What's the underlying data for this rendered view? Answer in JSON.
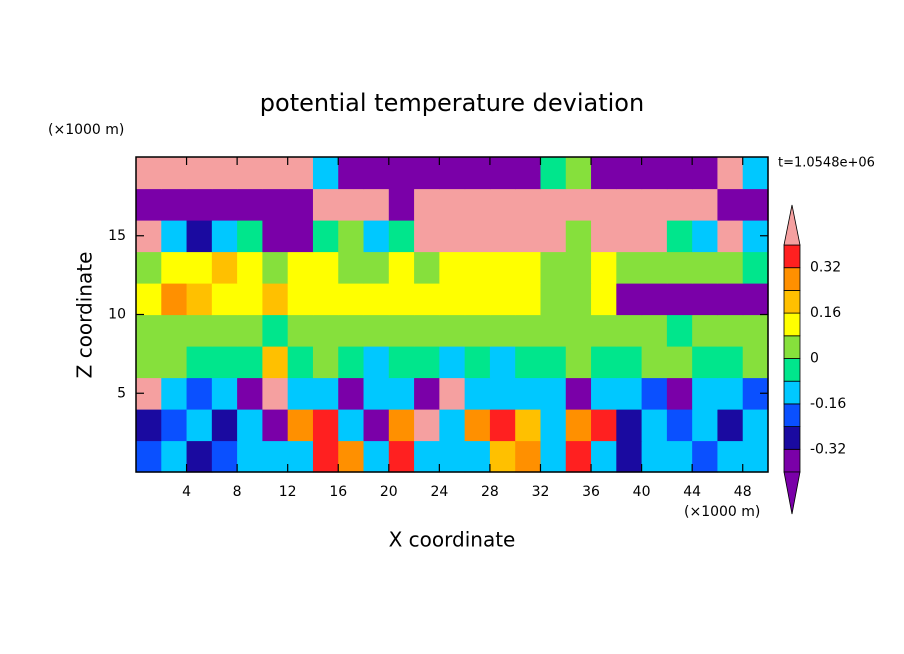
{
  "chart_data": {
    "type": "contour",
    "title": "potential temperature deviation",
    "x_label": "X coordinate",
    "y_label": "Z coordinate",
    "x_units": "(×1000 m)",
    "y_units": "(×1000 m)",
    "time_label": "t=1.0548e+06",
    "xlim": [
      0,
      50
    ],
    "ylim": [
      0,
      20
    ],
    "xticks": [
      4,
      8,
      12,
      16,
      20,
      24,
      28,
      32,
      36,
      40,
      44,
      48
    ],
    "yticks": [
      5,
      10,
      15
    ],
    "levels": [
      -0.4,
      -0.32,
      -0.24,
      -0.16,
      -0.08,
      0,
      0.08,
      0.16,
      0.24,
      0.32,
      0.4
    ],
    "colors": [
      "#7a00a8",
      "#7a00a8",
      "#1a0aa0",
      "#0a50ff",
      "#00c8ff",
      "#00e68c",
      "#86e03c",
      "#ffff00",
      "#ffc000",
      "#ff9000",
      "#ff2020",
      "#f5a0a0"
    ],
    "colorbar_ticks": [
      -0.32,
      -0.16,
      0,
      0.16,
      0.32
    ],
    "x": [
      1,
      3,
      5,
      7,
      9,
      11,
      13,
      15,
      17,
      19,
      21,
      23,
      25,
      27,
      29,
      31,
      33,
      35,
      37,
      39,
      41,
      43,
      45,
      47,
      49
    ],
    "z": [
      1,
      3,
      5,
      7,
      9,
      11,
      13,
      15,
      17,
      19
    ],
    "field": [
      [
        -0.2,
        -0.12,
        -0.28,
        -0.2,
        -0.12,
        -0.12,
        -0.12,
        0.36,
        0.28,
        -0.12,
        0.36,
        -0.12,
        -0.12,
        -0.12,
        0.2,
        0.28,
        -0.12,
        0.36,
        -0.12,
        -0.28,
        -0.12,
        -0.12,
        -0.2,
        -0.12,
        -0.12
      ],
      [
        -0.28,
        -0.2,
        -0.12,
        -0.28,
        -0.12,
        -0.44,
        0.28,
        0.36,
        -0.12,
        -0.44,
        0.28,
        0.44,
        -0.12,
        0.28,
        0.36,
        0.2,
        -0.12,
        0.28,
        0.36,
        -0.28,
        -0.12,
        -0.2,
        -0.12,
        -0.28,
        -0.12
      ],
      [
        0.44,
        -0.12,
        -0.2,
        -0.12,
        -0.44,
        0.44,
        -0.12,
        -0.12,
        -0.44,
        -0.12,
        -0.12,
        -0.44,
        0.44,
        -0.12,
        -0.12,
        -0.12,
        -0.12,
        -0.44,
        -0.12,
        -0.12,
        -0.2,
        -0.44,
        -0.12,
        -0.12,
        -0.2
      ],
      [
        0.04,
        0.04,
        -0.04,
        -0.04,
        -0.04,
        0.2,
        -0.04,
        0.04,
        -0.04,
        -0.12,
        -0.04,
        -0.04,
        -0.12,
        -0.04,
        -0.12,
        -0.04,
        -0.04,
        0.04,
        -0.04,
        -0.04,
        0.04,
        0.04,
        -0.04,
        -0.04,
        0.04
      ],
      [
        0.04,
        0.04,
        0.04,
        0.04,
        0.04,
        -0.04,
        0.04,
        0.04,
        0.04,
        0.04,
        0.04,
        0.04,
        0.04,
        0.04,
        0.04,
        0.04,
        0.04,
        0.04,
        0.04,
        0.04,
        0.04,
        -0.04,
        0.04,
        0.04,
        0.04
      ],
      [
        0.12,
        0.28,
        0.2,
        0.12,
        0.12,
        0.2,
        0.12,
        0.12,
        0.12,
        0.12,
        0.12,
        0.12,
        0.12,
        0.12,
        0.12,
        0.12,
        0.04,
        0.04,
        0.12,
        -0.44,
        -0.44,
        -0.44,
        -0.44,
        -0.44,
        -0.44
      ],
      [
        0.04,
        0.12,
        0.12,
        0.2,
        0.12,
        0.04,
        0.12,
        0.12,
        0.04,
        0.04,
        0.12,
        0.04,
        0.12,
        0.12,
        0.12,
        0.12,
        0.04,
        0.04,
        0.12,
        0.04,
        0.04,
        0.04,
        0.04,
        0.04,
        -0.04
      ],
      [
        0.44,
        -0.12,
        -0.28,
        -0.12,
        -0.04,
        -0.44,
        -0.44,
        -0.04,
        0.04,
        -0.12,
        -0.04,
        0.44,
        0.44,
        0.44,
        0.44,
        0.44,
        0.44,
        0.04,
        0.44,
        0.44,
        0.44,
        -0.04,
        -0.12,
        0.44,
        -0.12
      ],
      [
        -0.44,
        -0.44,
        -0.44,
        -0.44,
        -0.44,
        -0.44,
        -0.44,
        0.44,
        0.44,
        0.44,
        -0.44,
        0.44,
        0.44,
        0.44,
        0.44,
        0.44,
        0.44,
        0.44,
        0.44,
        0.44,
        0.44,
        0.44,
        0.44,
        -0.44,
        -0.44
      ],
      [
        0.44,
        0.44,
        0.44,
        0.44,
        0.44,
        0.44,
        0.44,
        -0.12,
        -0.44,
        -0.44,
        -0.44,
        -0.44,
        -0.44,
        -0.44,
        -0.44,
        -0.44,
        -0.04,
        0.04,
        -0.44,
        -0.44,
        -0.44,
        -0.44,
        -0.44,
        0.44,
        -0.12
      ]
    ]
  }
}
